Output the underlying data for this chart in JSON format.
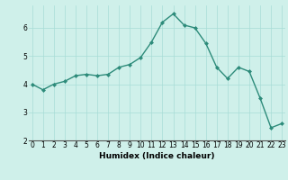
{
  "x": [
    0,
    1,
    2,
    3,
    4,
    5,
    6,
    7,
    8,
    9,
    10,
    11,
    12,
    13,
    14,
    15,
    16,
    17,
    18,
    19,
    20,
    21,
    22,
    23
  ],
  "y": [
    4.0,
    3.8,
    4.0,
    4.1,
    4.3,
    4.35,
    4.3,
    4.35,
    4.6,
    4.7,
    4.95,
    5.5,
    6.2,
    6.5,
    6.1,
    6.0,
    5.45,
    4.6,
    4.2,
    4.6,
    4.45,
    3.5,
    2.45,
    2.6
  ],
  "xlabel": "Humidex (Indice chaleur)",
  "xlim": [
    -0.3,
    23.3
  ],
  "ylim": [
    2.0,
    6.8
  ],
  "yticks": [
    2,
    3,
    4,
    5,
    6
  ],
  "xticks": [
    0,
    1,
    2,
    3,
    4,
    5,
    6,
    7,
    8,
    9,
    10,
    11,
    12,
    13,
    14,
    15,
    16,
    17,
    18,
    19,
    20,
    21,
    22,
    23
  ],
  "line_color": "#2d8b7a",
  "marker": "D",
  "marker_size": 2.0,
  "bg_color": "#cff0ea",
  "grid_color": "#a8ddd6",
  "line_width": 1.0,
  "tick_fontsize": 5.5,
  "xlabel_fontsize": 6.5
}
